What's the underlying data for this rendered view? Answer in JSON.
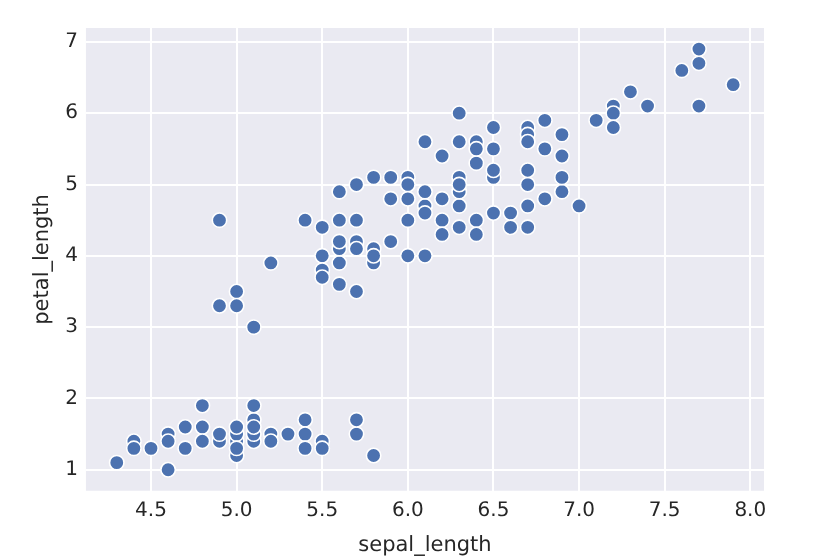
{
  "chart_data": {
    "type": "scatter",
    "xlabel": "sepal_length",
    "ylabel": "petal_length",
    "x": [
      5.1,
      4.9,
      4.7,
      4.6,
      5.0,
      5.4,
      4.6,
      5.0,
      4.4,
      4.9,
      5.4,
      4.8,
      4.8,
      4.3,
      5.8,
      5.7,
      5.4,
      5.7,
      5.1,
      4.6,
      5.1,
      4.8,
      5.0,
      5.2,
      5.2,
      4.7,
      5.5,
      5.0,
      5.5,
      4.4,
      5.0,
      4.5,
      5.1,
      5.1,
      5.3,
      7.0,
      6.4,
      6.9,
      5.5,
      6.5,
      5.7,
      6.3,
      4.9,
      6.6,
      5.2,
      5.0,
      5.9,
      6.0,
      6.1,
      5.6,
      6.7,
      5.6,
      5.8,
      6.2,
      5.6,
      5.9,
      6.1,
      6.3,
      6.4,
      6.6,
      6.8,
      6.7,
      6.0,
      5.7,
      5.5,
      5.5,
      5.8,
      6.0,
      5.4,
      6.7,
      6.3,
      5.6,
      5.5,
      6.1,
      5.8,
      5.0,
      5.6,
      5.7,
      6.2,
      5.1,
      5.7,
      6.3,
      5.8,
      7.1,
      6.3,
      6.5,
      7.6,
      4.9,
      7.3,
      6.7,
      7.2,
      6.5,
      6.4,
      6.8,
      5.7,
      6.5,
      7.7,
      7.7,
      6.0,
      6.9,
      5.6,
      6.7,
      7.2,
      6.2,
      6.1,
      6.4,
      7.2,
      7.4,
      7.9,
      6.3,
      6.1,
      7.7,
      6.4,
      6.0,
      6.9,
      6.7,
      6.9,
      6.8,
      6.7,
      6.3,
      6.5,
      6.2,
      5.9
    ],
    "values": [
      1.4,
      1.4,
      1.3,
      1.5,
      1.4,
      1.7,
      1.4,
      1.5,
      1.4,
      1.5,
      1.5,
      1.6,
      1.4,
      1.1,
      1.2,
      1.5,
      1.3,
      1.7,
      1.5,
      1.0,
      1.7,
      1.9,
      1.6,
      1.5,
      1.4,
      1.6,
      1.4,
      1.2,
      1.3,
      1.3,
      1.3,
      1.3,
      1.9,
      1.6,
      1.5,
      4.7,
      4.5,
      4.9,
      4.0,
      4.6,
      4.5,
      4.7,
      3.3,
      4.6,
      3.9,
      3.5,
      4.2,
      4.0,
      4.7,
      3.6,
      4.4,
      4.5,
      4.1,
      4.5,
      3.9,
      4.8,
      4.0,
      4.9,
      4.3,
      4.4,
      4.8,
      5.0,
      4.5,
      3.5,
      3.8,
      3.7,
      3.9,
      5.1,
      4.5,
      4.7,
      4.4,
      4.1,
      4.4,
      4.6,
      4.0,
      3.3,
      4.2,
      4.2,
      4.3,
      3.0,
      4.1,
      6.0,
      5.1,
      5.9,
      5.6,
      5.8,
      6.6,
      4.5,
      6.3,
      5.8,
      6.1,
      5.1,
      5.3,
      5.5,
      5.0,
      5.5,
      6.7,
      6.9,
      5.0,
      5.7,
      4.9,
      5.7,
      6.0,
      4.8,
      4.9,
      5.6,
      5.8,
      6.1,
      6.4,
      5.1,
      5.6,
      6.1,
      5.5,
      4.8,
      5.4,
      5.6,
      5.1,
      5.9,
      5.2,
      5.0,
      5.2,
      5.4,
      5.1
    ],
    "color": "#4c72b0",
    "marker": "circle",
    "grid": true,
    "legend": false,
    "xlim": [
      4.12,
      8.08
    ],
    "ylim": [
      0.705,
      7.195
    ],
    "xticks": [
      {
        "value": 4.5,
        "label": "4.5"
      },
      {
        "value": 5,
        "label": "5.0"
      },
      {
        "value": 5.5,
        "label": "5.5"
      },
      {
        "value": 6,
        "label": "6.0"
      },
      {
        "value": 6.5,
        "label": "6.5"
      },
      {
        "value": 7,
        "label": "7.0"
      },
      {
        "value": 7.5,
        "label": "7.5"
      },
      {
        "value": 8,
        "label": "8.0"
      }
    ],
    "yticks": [
      1,
      2,
      3,
      4,
      5,
      6,
      7
    ]
  }
}
